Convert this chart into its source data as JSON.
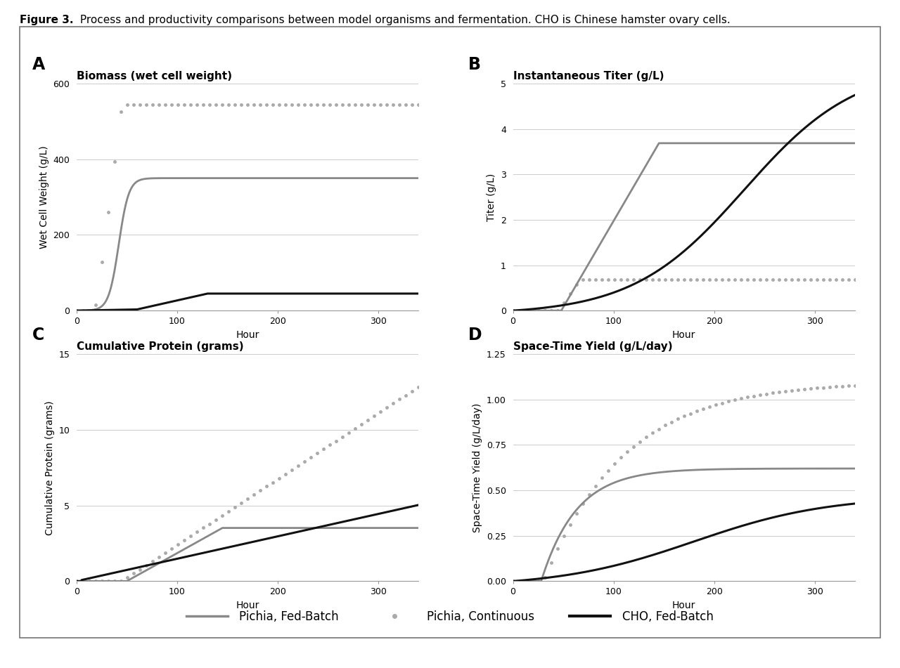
{
  "figure_title_bold": "Figure 3.",
  "figure_title_normal": " Process and productivity comparisons between model organisms and fermentation. CHO is Chinese hamster ovary cells.",
  "panel_A_title": "Biomass (wet cell weight)",
  "panel_B_title": "Instantaneous Titer (g/L)",
  "panel_C_title": "Cumulative Protein (grams)",
  "panel_D_title": "Space-Time Yield (g/L/day)",
  "panel_A_label": "A",
  "panel_B_label": "B",
  "panel_C_label": "C",
  "panel_D_label": "D",
  "xlabel": "Hour",
  "ylabel_A": "Wet Cell Weight (g/L)",
  "ylabel_B": "Titer (g/L)",
  "ylabel_C": "Cumulative Protein (grams)",
  "ylabel_D": "Space-Time Yield (g/L/day)",
  "xlim": [
    0,
    340
  ],
  "ylim_A": [
    0,
    600
  ],
  "ylim_B": [
    0,
    5
  ],
  "ylim_C": [
    0,
    15
  ],
  "ylim_D": [
    0,
    1.25
  ],
  "yticks_A": [
    0,
    200,
    400,
    600
  ],
  "yticks_B": [
    0,
    1,
    2,
    3,
    4,
    5
  ],
  "yticks_C": [
    0,
    5,
    10,
    15
  ],
  "yticks_D": [
    0.0,
    0.25,
    0.5,
    0.75,
    1.0,
    1.25
  ],
  "xticks": [
    0,
    100,
    200,
    300
  ],
  "color_pichia_fedbatch": "#888888",
  "color_pichia_continuous": "#aaaaaa",
  "color_cho_fedbatch": "#111111",
  "legend_labels": [
    "Pichia, Fed-Batch",
    "Pichia, Continuous",
    "CHO, Fed-Batch"
  ],
  "background_color": "#ffffff"
}
